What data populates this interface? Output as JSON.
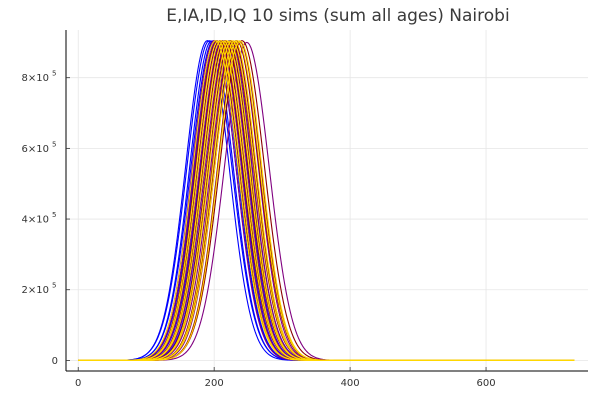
{
  "chart_data": {
    "type": "line",
    "title": "E,IA,ID,IQ 10 sims (sum all ages) Nairobi",
    "xlabel": "",
    "ylabel": "",
    "xlim": [
      -18,
      750
    ],
    "ylim": [
      -30000,
      935000
    ],
    "x_ticks": [
      {
        "value": 0,
        "label": "0"
      },
      {
        "value": 200,
        "label": "200"
      },
      {
        "value": 400,
        "label": "400"
      },
      {
        "value": 600,
        "label": "600"
      }
    ],
    "y_ticks": [
      {
        "value": 0,
        "base": "0",
        "exp": ""
      },
      {
        "value": 200000,
        "base": "2×10",
        "exp": "5"
      },
      {
        "value": 400000,
        "base": "4×10",
        "exp": "5"
      },
      {
        "value": 600000,
        "base": "6×10",
        "exp": "5"
      },
      {
        "value": 800000,
        "base": "8×10",
        "exp": "5"
      }
    ],
    "x_range": [
      0,
      730
    ],
    "grid": true,
    "legend": "none",
    "series": [
      {
        "color": "#0000ff",
        "peak_x": 190,
        "peak_y": 905000,
        "width": 32
      },
      {
        "color": "#0000ff",
        "peak_x": 193,
        "peak_y": 905000,
        "width": 33
      },
      {
        "color": "#0000ff",
        "peak_x": 196,
        "peak_y": 904000,
        "width": 32
      },
      {
        "color": "#0000ff",
        "peak_x": 199,
        "peak_y": 905000,
        "width": 33
      },
      {
        "color": "#0000ff",
        "peak_x": 202,
        "peak_y": 905000,
        "width": 32
      },
      {
        "color": "#0000ff",
        "peak_x": 205,
        "peak_y": 904000,
        "width": 33
      },
      {
        "color": "#0000ff",
        "peak_x": 209,
        "peak_y": 905000,
        "width": 32
      },
      {
        "color": "#0000ff",
        "peak_x": 213,
        "peak_y": 905000,
        "width": 33
      },
      {
        "color": "#0000ff",
        "peak_x": 217,
        "peak_y": 904000,
        "width": 32
      },
      {
        "color": "#0000ff",
        "peak_x": 222,
        "peak_y": 905000,
        "width": 33
      },
      {
        "color": "#800080",
        "peak_x": 200,
        "peak_y": 905000,
        "width": 32
      },
      {
        "color": "#800080",
        "peak_x": 204,
        "peak_y": 905000,
        "width": 33
      },
      {
        "color": "#800080",
        "peak_x": 208,
        "peak_y": 904000,
        "width": 32
      },
      {
        "color": "#800080",
        "peak_x": 212,
        "peak_y": 905000,
        "width": 33
      },
      {
        "color": "#800080",
        "peak_x": 216,
        "peak_y": 905000,
        "width": 32
      },
      {
        "color": "#800080",
        "peak_x": 220,
        "peak_y": 904000,
        "width": 33
      },
      {
        "color": "#800080",
        "peak_x": 224,
        "peak_y": 905000,
        "width": 32
      },
      {
        "color": "#800080",
        "peak_x": 228,
        "peak_y": 904000,
        "width": 33
      },
      {
        "color": "#800080",
        "peak_x": 233,
        "peak_y": 905000,
        "width": 32
      },
      {
        "color": "#800080",
        "peak_x": 248,
        "peak_y": 900000,
        "width": 33
      },
      {
        "color": "#8b0000",
        "peak_x": 205,
        "peak_y": 904000,
        "width": 32
      },
      {
        "color": "#8b0000",
        "peak_x": 209,
        "peak_y": 905000,
        "width": 33
      },
      {
        "color": "#8b0000",
        "peak_x": 213,
        "peak_y": 904000,
        "width": 32
      },
      {
        "color": "#8b0000",
        "peak_x": 217,
        "peak_y": 905000,
        "width": 33
      },
      {
        "color": "#8b0000",
        "peak_x": 221,
        "peak_y": 904000,
        "width": 32
      },
      {
        "color": "#8b0000",
        "peak_x": 225,
        "peak_y": 905000,
        "width": 33
      },
      {
        "color": "#8b0000",
        "peak_x": 229,
        "peak_y": 904000,
        "width": 32
      },
      {
        "color": "#8b0000",
        "peak_x": 233,
        "peak_y": 905000,
        "width": 33
      },
      {
        "color": "#8b0000",
        "peak_x": 237,
        "peak_y": 904000,
        "width": 32
      },
      {
        "color": "#8b0000",
        "peak_x": 241,
        "peak_y": 905000,
        "width": 33
      },
      {
        "color": "#ffd700",
        "peak_x": 202,
        "peak_y": 905000,
        "width": 33
      },
      {
        "color": "#ffd700",
        "peak_x": 206,
        "peak_y": 904000,
        "width": 32
      },
      {
        "color": "#ffd700",
        "peak_x": 210,
        "peak_y": 905000,
        "width": 33
      },
      {
        "color": "#ffd700",
        "peak_x": 214,
        "peak_y": 904000,
        "width": 32
      },
      {
        "color": "#ffd700",
        "peak_x": 218,
        "peak_y": 905000,
        "width": 33
      },
      {
        "color": "#ffd700",
        "peak_x": 222,
        "peak_y": 904000,
        "width": 32
      },
      {
        "color": "#ffd700",
        "peak_x": 226,
        "peak_y": 905000,
        "width": 33
      },
      {
        "color": "#ffd700",
        "peak_x": 230,
        "peak_y": 904000,
        "width": 32
      },
      {
        "color": "#ffd700",
        "peak_x": 234,
        "peak_y": 905000,
        "width": 33
      },
      {
        "color": "#ffd700",
        "peak_x": 238,
        "peak_y": 904000,
        "width": 32
      }
    ]
  }
}
